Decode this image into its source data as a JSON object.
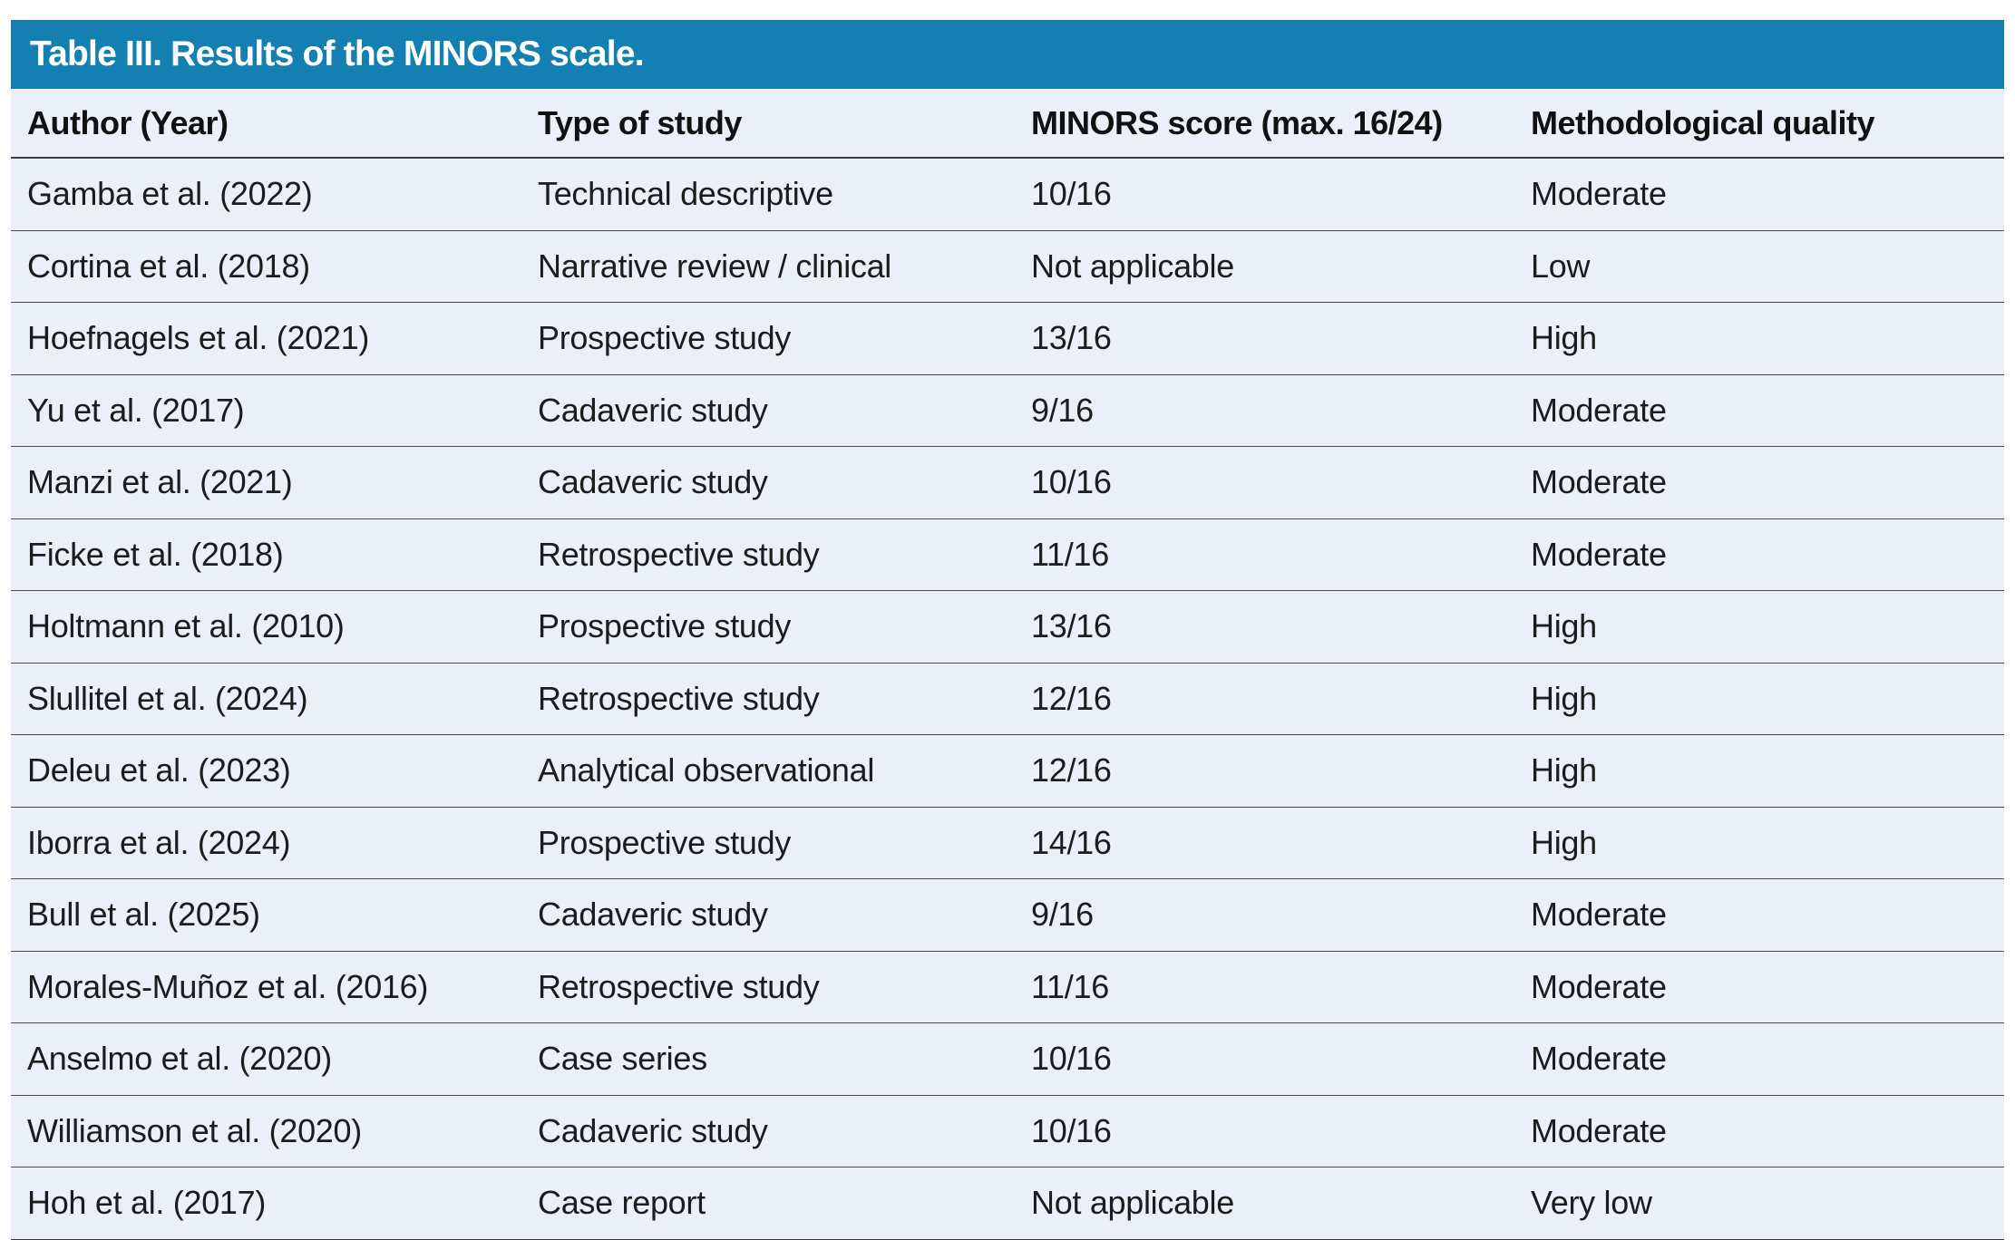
{
  "table": {
    "title": "Table III. Results of the MINORS scale.",
    "columns": [
      "Author (Year)",
      "Type of study",
      "MINORS score (max. 16/24)",
      "Methodological quality"
    ],
    "rows": [
      {
        "author": "Gamba et al. (2022)",
        "type": "Technical descriptive",
        "score": "10/16",
        "quality": "Moderate"
      },
      {
        "author": "Cortina et al. (2018)",
        "type": "Narrative review / clinical",
        "score": "Not applicable",
        "quality": "Low"
      },
      {
        "author": "Hoefnagels et al. (2021)",
        "type": "Prospective study",
        "score": "13/16",
        "quality": "High"
      },
      {
        "author": "Yu et al. (2017)",
        "type": "Cadaveric study",
        "score": "9/16",
        "quality": "Moderate"
      },
      {
        "author": "Manzi et al. (2021)",
        "type": "Cadaveric study",
        "score": "10/16",
        "quality": "Moderate"
      },
      {
        "author": "Ficke et al. (2018)",
        "type": "Retrospective study",
        "score": "11/16",
        "quality": "Moderate"
      },
      {
        "author": "Holtmann et al. (2010)",
        "type": "Prospective study",
        "score": "13/16",
        "quality": "High"
      },
      {
        "author": "Slullitel et al. (2024)",
        "type": "Retrospective study",
        "score": "12/16",
        "quality": "High"
      },
      {
        "author": "Deleu et al. (2023)",
        "type": "Analytical observational",
        "score": "12/16",
        "quality": "High"
      },
      {
        "author": "Iborra et al. (2024)",
        "type": "Prospective study",
        "score": "14/16",
        "quality": "High"
      },
      {
        "author": "Bull et al. (2025)",
        "type": "Cadaveric study",
        "score": "9/16",
        "quality": "Moderate"
      },
      {
        "author": "Morales-Muñoz et al. (2016)",
        "type": "Retrospective study",
        "score": "11/16",
        "quality": "Moderate"
      },
      {
        "author": "Anselmo et al. (2020)",
        "type": "Case series",
        "score": "10/16",
        "quality": "Moderate"
      },
      {
        "author": "Williamson et al. (2020)",
        "type": "Cadaveric study",
        "score": "10/16",
        "quality": "Moderate"
      },
      {
        "author": "Hoh et al. (2017)",
        "type": "Case report",
        "score": "Not applicable",
        "quality": "Very low"
      }
    ]
  },
  "colors": {
    "title_bar_background": "#147fb1",
    "title_text": "#ffffff",
    "row_background": "#ebeff7",
    "rule_line": "#4a4b52",
    "body_text": "#1c1c1c"
  }
}
